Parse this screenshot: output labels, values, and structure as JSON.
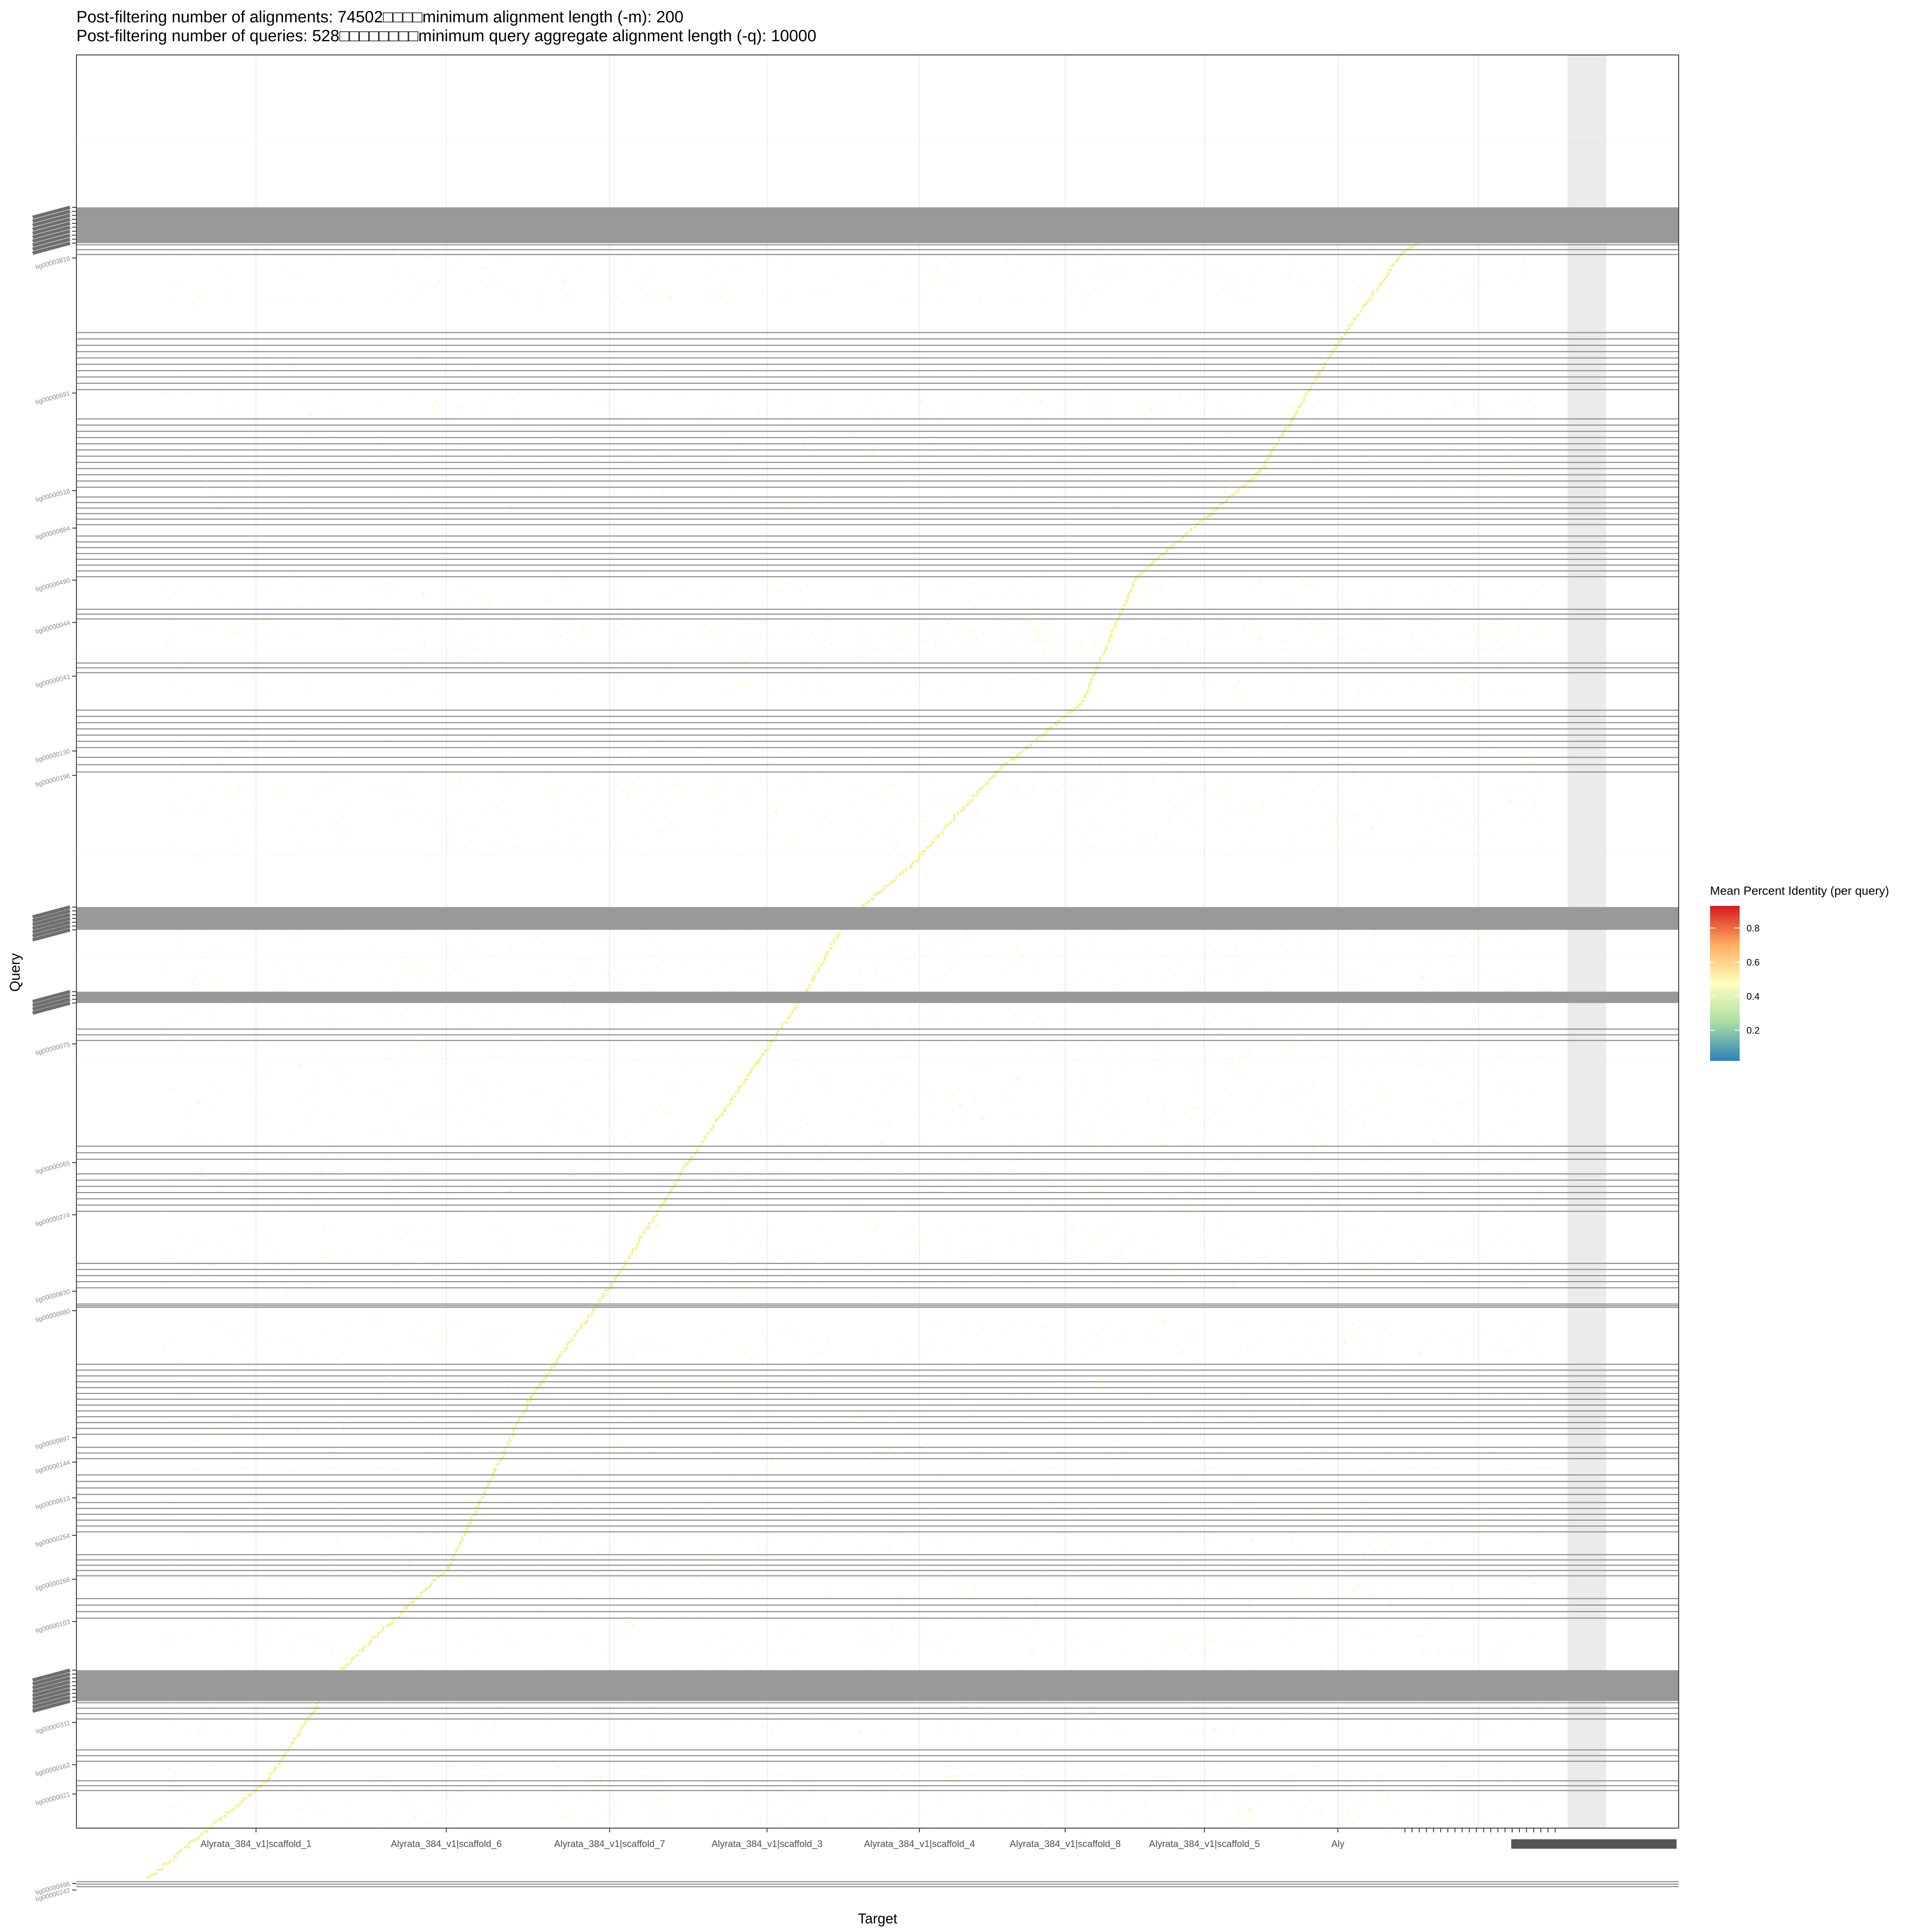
{
  "chart_data": {
    "type": "scatter",
    "title_lines": [
      "Post-filtering number of alignments: 74502□□□□minimum alignment length (-m): 200",
      "Post-filtering number of queries: 528□□□□□□□□minimum query aggregate alignment length (-q): 10000"
    ],
    "xlabel": "Target",
    "ylabel": "Query",
    "x_ticks": [
      "Alyrata_384_v1|scaffold_1",
      "Alyrata_384_v1|scaffold_6",
      "Alyrata_384_v1|scaffold_7",
      "Alyrata_384_v1|scaffold_3",
      "Alyrata_384_v1|scaffold_4",
      "Alyrata_384_v1|scaffold_8",
      "Alyrata_384_v1|scaffold_5",
      "Aly"
    ],
    "x_boundaries": [
      0,
      0.148,
      0.261,
      0.372,
      0.477,
      0.581,
      0.677,
      0.772,
      0.86,
      0.965
    ],
    "y_dense_blocks": [
      [
        0.043,
        0.065
      ],
      [
        0.473,
        0.487
      ],
      [
        0.525,
        0.532
      ],
      [
        0.942,
        0.961
      ]
    ],
    "y_line_groups": [
      [
        0.066,
        0.072
      ],
      [
        0.12,
        0.155
      ],
      [
        0.173,
        0.215
      ],
      [
        0.221,
        0.238
      ],
      [
        0.245,
        0.27
      ],
      [
        0.29,
        0.296
      ],
      [
        0.323,
        0.329
      ],
      [
        0.352,
        0.375
      ],
      [
        0.381,
        0.39
      ],
      [
        0.548,
        0.555
      ],
      [
        0.62,
        0.628
      ],
      [
        0.637,
        0.66
      ],
      [
        0.692,
        0.707
      ],
      [
        0.717,
        0.719
      ],
      [
        0.754,
        0.797
      ],
      [
        0.805,
        0.812
      ],
      [
        0.822,
        0.834
      ],
      [
        0.839,
        0.857
      ],
      [
        0.871,
        0.884
      ],
      [
        0.898,
        0.91
      ],
      [
        0.962,
        0.972
      ],
      [
        0.991,
        0.998
      ],
      [
        1.01,
        1.016
      ],
      [
        1.072,
        1.075
      ]
    ],
    "y_tick_labels": [
      "tig00003816",
      "tig00000691",
      "tig00000518",
      "tig00000884",
      "tig00000490",
      "tig00000044",
      "tig00000041",
      "tig00000130",
      "tig00000196",
      "tig00000075",
      "tig00000065",
      "tig00000274",
      "tig00000830",
      "tig00000880",
      "tig00000897",
      "tig00000144",
      "tig00000613",
      "tig00000254",
      "tig00000268",
      "tig00000103",
      "tig00000311",
      "tig00000162",
      "tig00000021",
      "tig00000242",
      "tig00000216",
      "tig00000006",
      "tig00000528",
      "tig00000496"
    ],
    "colorbar": {
      "title": "Mean Percent Identity (per query)",
      "ticks": [
        "0.2",
        "0.4",
        "0.6",
        "0.8"
      ],
      "range": [
        0.02,
        0.93
      ],
      "colors": [
        "#2b83ba",
        "#abdda4",
        "#ffffbf",
        "#fdae61",
        "#d7191c"
      ]
    },
    "diagonal_segments": [
      [
        0.0,
        1.07,
        0.0818,
        1.01
      ],
      [
        0.0818,
        1.01,
        0.13,
        0.944
      ],
      [
        0.13,
        0.944,
        0.206,
        0.879
      ],
      [
        0.206,
        0.879,
        0.262,
        0.775
      ],
      [
        0.262,
        0.775,
        0.318,
        0.705
      ],
      [
        0.318,
        0.705,
        0.372,
        0.628
      ],
      [
        0.372,
        0.628,
        0.45,
        0.527
      ],
      [
        0.45,
        0.527,
        0.478,
        0.482
      ],
      [
        0.478,
        0.482,
        0.523,
        0.448
      ],
      [
        0.523,
        0.448,
        0.582,
        0.39
      ],
      [
        0.582,
        0.39,
        0.64,
        0.348
      ],
      [
        0.64,
        0.348,
        0.678,
        0.27
      ],
      [
        0.678,
        0.27,
        0.763,
        0.205
      ],
      [
        0.763,
        0.205,
        0.815,
        0.128
      ],
      [
        0.815,
        0.128,
        0.86,
        0.071
      ],
      [
        0.86,
        0.071,
        0.9,
        0.045
      ]
    ],
    "point_color": "#fafab0",
    "grid": true,
    "legend_position": "right"
  }
}
